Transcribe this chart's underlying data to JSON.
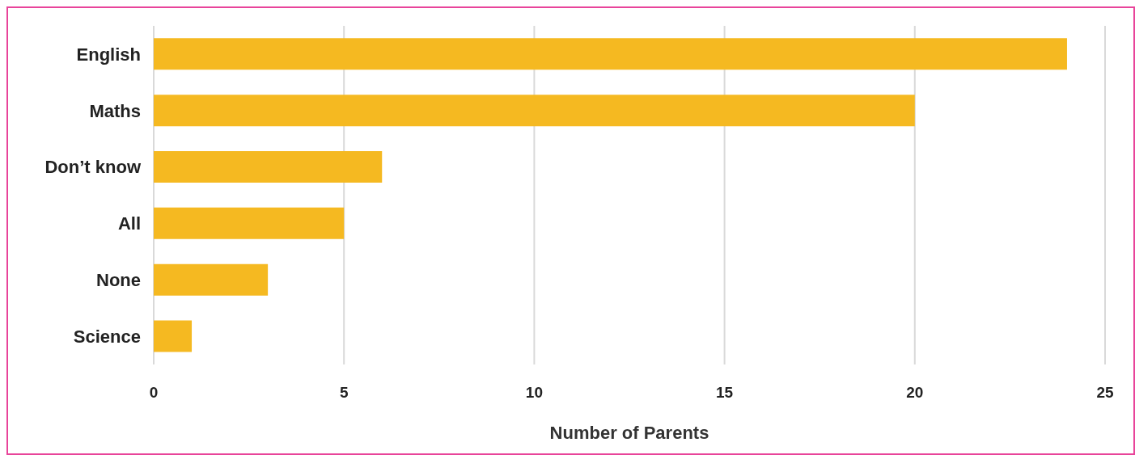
{
  "chart_data": {
    "type": "bar",
    "orientation": "horizontal",
    "xlabel": "Number of Parents",
    "categories": [
      "English",
      "Maths",
      "Don’t know",
      "All",
      "None",
      "Science"
    ],
    "values": [
      24,
      20,
      6,
      5,
      3,
      1
    ],
    "color": "#f5b921",
    "xlim": [
      0,
      25
    ],
    "xticks": [
      0,
      5,
      10,
      15,
      20,
      25
    ],
    "grid": "x"
  }
}
